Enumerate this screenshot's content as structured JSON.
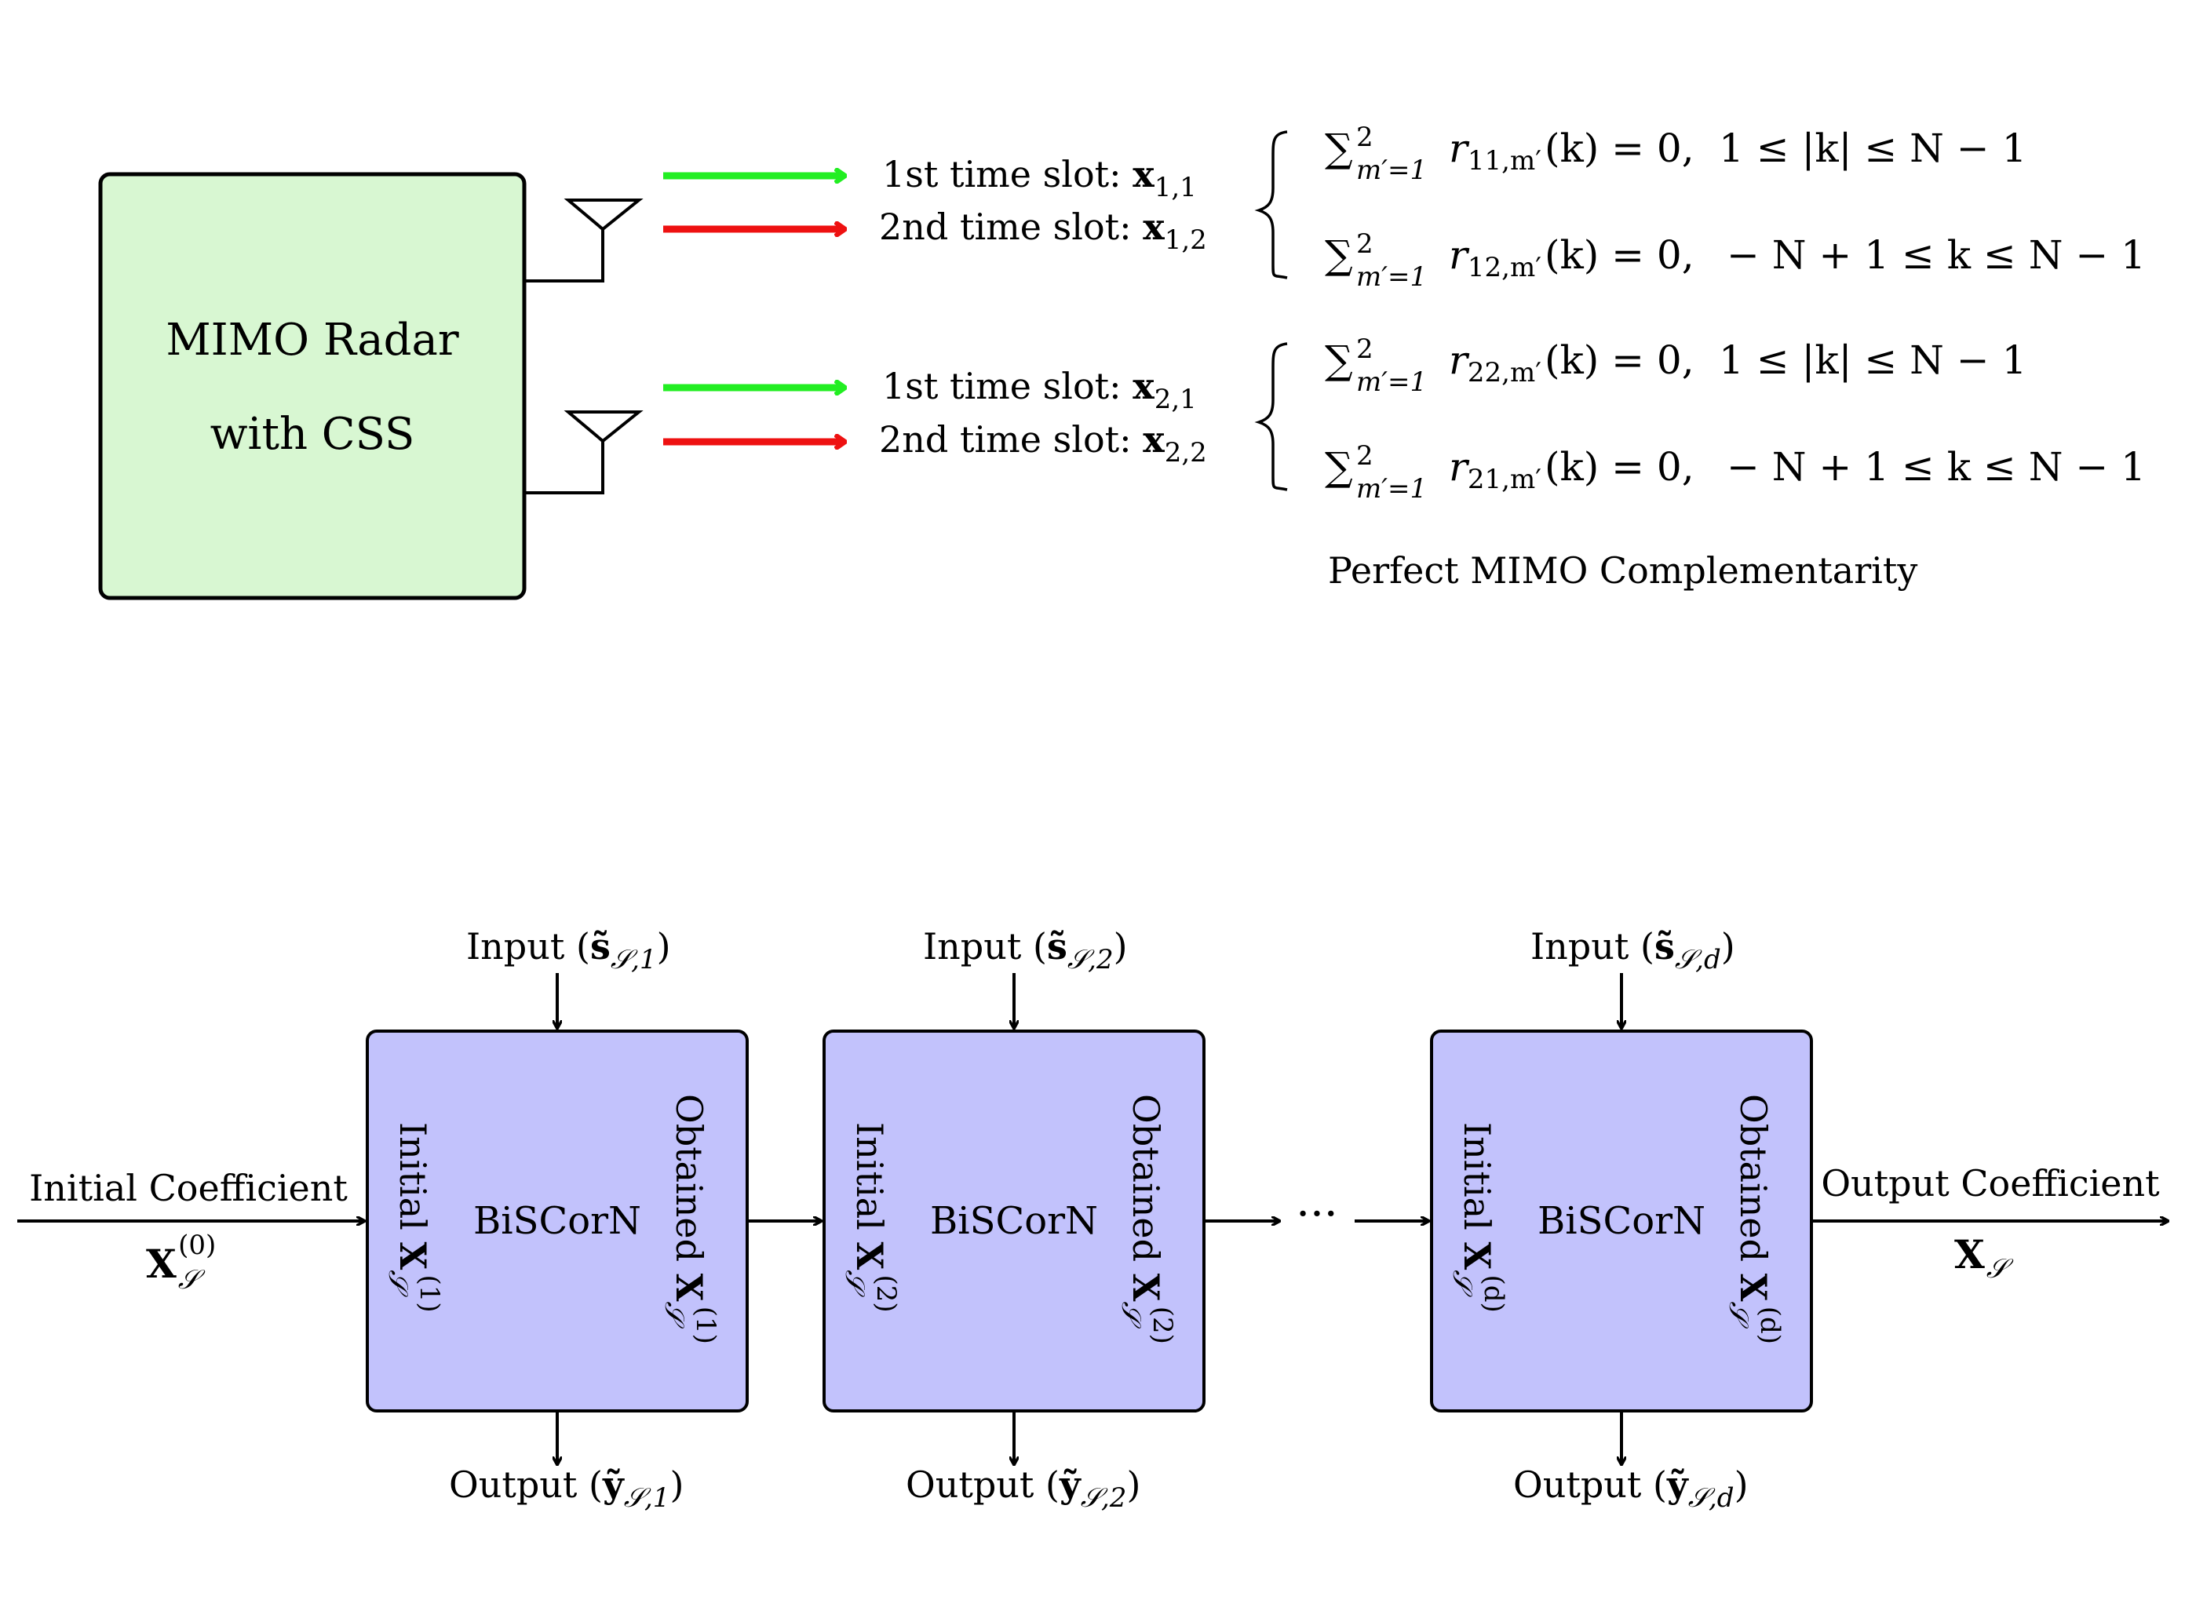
{
  "colors": {
    "radar_box_fill": "#d8f7d2",
    "biscorn_box_fill": "#c2c2fc",
    "slot1_arrow": "#22ee22",
    "slot2_arrow": "#ee1111",
    "stroke": "#000000"
  },
  "radar": {
    "title_line1": "MIMO Radar",
    "title_line2": "with CSS"
  },
  "antennas": [
    {
      "name": "antenna-1",
      "icon": "antenna-icon",
      "slot1_label": "1st  time slot: ",
      "slot1_var": "x",
      "slot1_sub": "1,1",
      "slot2_label": "2nd time slot: ",
      "slot2_var": "x",
      "slot2_sub": "1,2"
    },
    {
      "name": "antenna-2",
      "icon": "antenna-icon",
      "slot1_label": "1st  time slot: ",
      "slot1_var": "x",
      "slot1_sub": "2,1",
      "slot2_label": "2nd time slot: ",
      "slot2_var": "x",
      "slot2_sub": "2,2"
    }
  ],
  "equations": {
    "sum_symbol": "∑",
    "sum_upper": "2",
    "sum_lower": "m′=1",
    "r": "r",
    "eq1_sub": "11,m′",
    "eq2_sub": "12,m′",
    "eq3_sub": "22,m′",
    "eq4_sub": "21,m′",
    "arg": "(k) = 0,",
    "range_auto": "1 ≤ |k| ≤ N − 1",
    "range_cross": "− N + 1 ≤ k ≤ N − 1",
    "caption": "Perfect MIMO Complementarity"
  },
  "pipeline": {
    "input_coeff_label": "Initial Coefficient",
    "input_coeff_sym": "X",
    "input_coeff_sub": "𝒮",
    "input_coeff_sup": "(0)",
    "output_coeff_label": "Output Coefficient",
    "output_coeff_sym": "X",
    "output_coeff_sub": "𝒮",
    "ellipsis": "···",
    "blocks": [
      {
        "title": "BiSCorN",
        "input_label": "Input (",
        "input_sym": "s̃",
        "input_sub": "𝒮,1",
        "output_label": "Output (",
        "output_sym": "ỹ",
        "output_sub": "𝒮,1",
        "close": ")",
        "initial_label": "Initial ",
        "initial_sym": "X",
        "initial_sub": "𝒮",
        "initial_sup": "(1)",
        "obtained_label": "Obtained ",
        "obtained_sym": "X",
        "obtained_sub": "𝒮",
        "obtained_sup": "(1)"
      },
      {
        "title": "BiSCorN",
        "input_label": "Input (",
        "input_sym": "s̃",
        "input_sub": "𝒮,2",
        "output_label": "Output (",
        "output_sym": "ỹ",
        "output_sub": "𝒮,2",
        "close": ")",
        "initial_label": "Initial ",
        "initial_sym": "X",
        "initial_sub": "𝒮",
        "initial_sup": "(2)",
        "obtained_label": "Obtained ",
        "obtained_sym": "X",
        "obtained_sub": "𝒮",
        "obtained_sup": "(2)"
      },
      {
        "title": "BiSCorN",
        "input_label": "Input (",
        "input_sym": "s̃",
        "input_sub": "𝒮,d",
        "output_label": "Output (",
        "output_sym": "ỹ",
        "output_sub": "𝒮,d",
        "close": ")",
        "initial_label": "Initial ",
        "initial_sym": "X",
        "initial_sub": "𝒮",
        "initial_sup": "(d)",
        "obtained_label": "Obtained ",
        "obtained_sym": "X",
        "obtained_sub": "𝒮",
        "obtained_sup": "(d)"
      }
    ]
  }
}
